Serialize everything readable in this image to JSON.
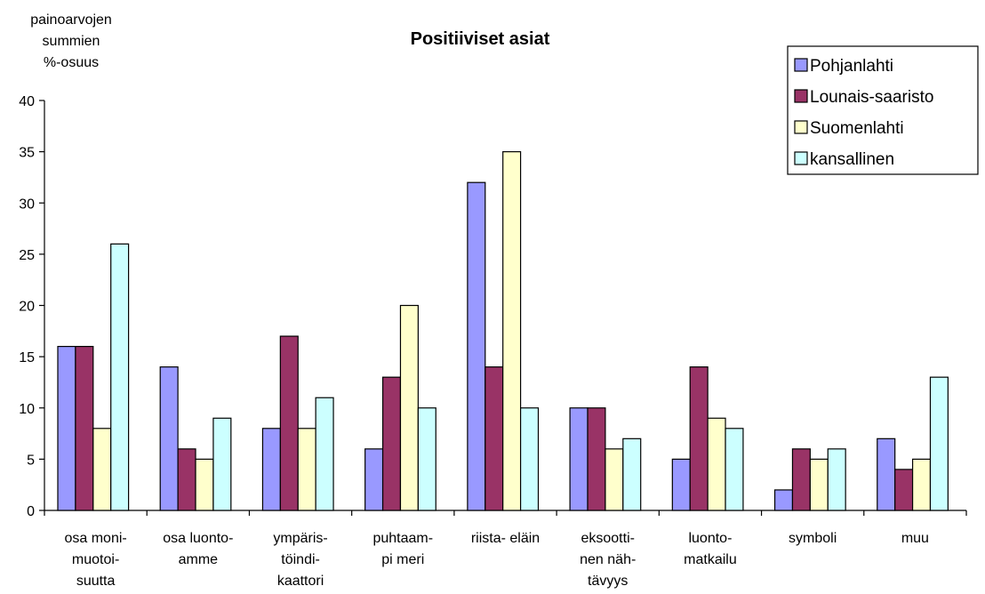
{
  "chart_data": {
    "type": "bar",
    "title": "Positiiviset asiat",
    "ylabel_lines": [
      "painoarvojen",
      "summien",
      "%-osuus"
    ],
    "ylim": [
      0,
      40
    ],
    "yticks": [
      0,
      5,
      10,
      15,
      20,
      25,
      30,
      35,
      40
    ],
    "grid": false,
    "legend_position": "top-right",
    "categories": [
      [
        "osa moni-",
        "muotoi-",
        "suutta"
      ],
      [
        "osa luonto-",
        "amme"
      ],
      [
        "ympäris-",
        "töindi-",
        "kaattori"
      ],
      [
        "puhtaam-",
        "pi meri"
      ],
      [
        "riista- eläin"
      ],
      [
        "eksootti-",
        "nen näh-",
        "tävyys"
      ],
      [
        "luonto-",
        "matkailu"
      ],
      [
        "symboli"
      ],
      [
        "muu"
      ]
    ],
    "series": [
      {
        "name": "Pohjanlahti",
        "color": "#9999ff",
        "values": [
          16,
          14,
          8,
          6,
          32,
          10,
          5,
          2,
          7
        ]
      },
      {
        "name": "Lounais-saaristo",
        "color": "#993366",
        "values": [
          16,
          6,
          17,
          13,
          14,
          10,
          14,
          6,
          4
        ]
      },
      {
        "name": "Suomenlahti",
        "color": "#ffffcc",
        "values": [
          8,
          5,
          8,
          20,
          35,
          6,
          9,
          5,
          5
        ]
      },
      {
        "name": "kansallinen",
        "color": "#ccffff",
        "values": [
          26,
          9,
          11,
          10,
          10,
          7,
          8,
          6,
          13
        ]
      }
    ]
  }
}
